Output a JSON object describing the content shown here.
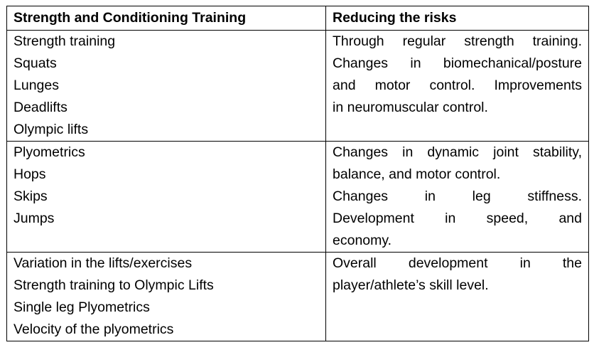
{
  "table": {
    "headers": [
      "Strength and Conditioning Training",
      "Reducing the risks"
    ],
    "rows": [
      {
        "training": [
          "Strength training",
          "Squats",
          "Lunges",
          "Deadlifts",
          "Olympic lifts"
        ],
        "risks": [
          "Through regular strength training.",
          "Changes in biomechanical/posture",
          "and motor control.  Improvements",
          "in neuromuscular control."
        ]
      },
      {
        "training": [
          "Plyometrics",
          "Hops",
          "Skips",
          "Jumps"
        ],
        "risks": [
          "Changes in dynamic joint stability,",
          "balance, and motor control.",
          "Changes in leg stiffness.",
          "Development in speed, and",
          "economy."
        ]
      },
      {
        "training": [
          "Variation in the lifts/exercises",
          "Strength training to Olympic Lifts",
          "Single leg Plyometrics",
          "Velocity of the plyometrics"
        ],
        "risks": [
          "Overall development in the",
          "player/athlete’s skill level."
        ]
      }
    ]
  }
}
